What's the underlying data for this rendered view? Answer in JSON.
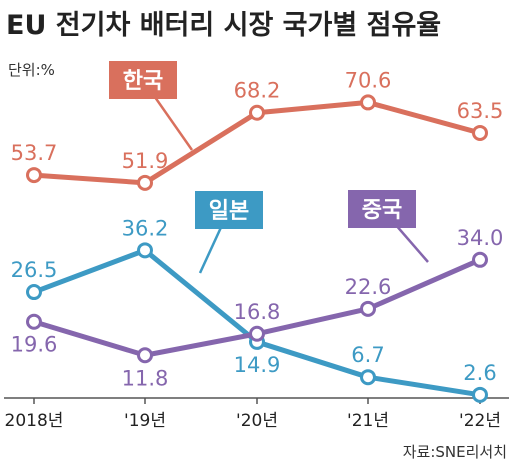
{
  "chart_data": {
    "type": "line",
    "title": "EU 전기차 배터리 시장 국가별 점유율",
    "unit_label": "단위:%",
    "source": "자료:SNE리서치",
    "categories": [
      "2018년",
      "'19년",
      "'20년",
      "'21년",
      "'22년"
    ],
    "ylim": [
      0,
      80
    ],
    "grid": false,
    "series": [
      {
        "name": "한국",
        "color": "#d9705d",
        "values": [
          53.7,
          51.9,
          68.2,
          70.6,
          63.5
        ]
      },
      {
        "name": "일본",
        "color": "#3d9ac4",
        "values": [
          26.5,
          36.2,
          14.9,
          6.7,
          2.6
        ]
      },
      {
        "name": "중국",
        "color": "#8566ad",
        "values": [
          19.6,
          11.8,
          16.8,
          22.6,
          34.0
        ]
      }
    ]
  }
}
